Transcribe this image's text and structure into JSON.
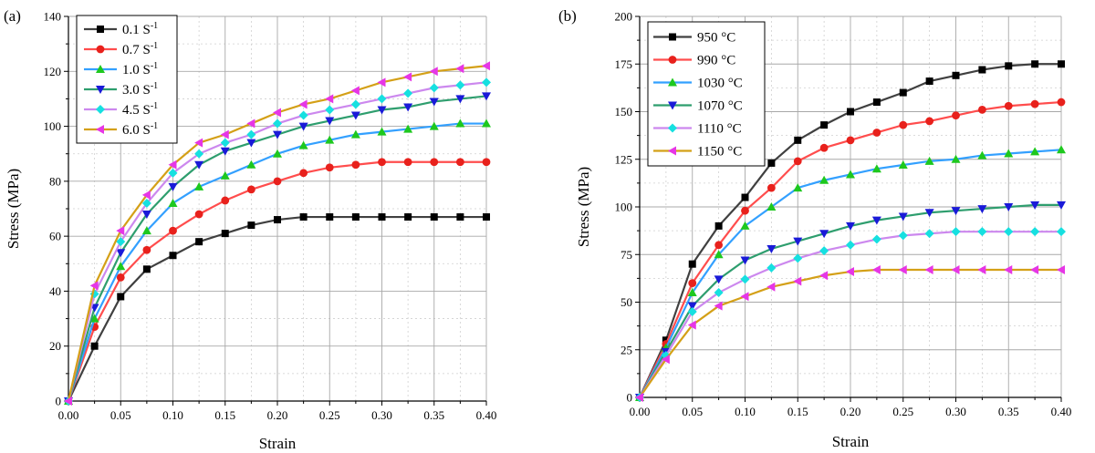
{
  "chart_data": [
    {
      "panel": "(a)",
      "type": "line",
      "xlabel": "Strain",
      "ylabel": "Stress (MPa)",
      "xlim": [
        0,
        0.4
      ],
      "ylim": [
        0,
        140
      ],
      "xticks": [
        0.0,
        0.05,
        0.1,
        0.15,
        0.2,
        0.25,
        0.3,
        0.35,
        0.4
      ],
      "xtick_labels": [
        "0.00",
        "0.05",
        "0.10",
        "0.15",
        "0.20",
        "0.25",
        "0.30",
        "0.35",
        "0.40"
      ],
      "yticks": [
        0,
        20,
        40,
        60,
        80,
        100,
        120,
        140
      ],
      "ytick_labels": [
        "0",
        "20",
        "40",
        "60",
        "80",
        "100",
        "120",
        "140"
      ],
      "x": [
        0,
        0.025,
        0.05,
        0.075,
        0.1,
        0.125,
        0.15,
        0.175,
        0.2,
        0.225,
        0.25,
        0.275,
        0.3,
        0.325,
        0.35,
        0.375,
        0.4
      ],
      "series": [
        {
          "name": "0.1 S",
          "sup": "-1",
          "color": "#000000",
          "marker": "square",
          "values": [
            0,
            20,
            38,
            48,
            53,
            58,
            61,
            64,
            66,
            67,
            67,
            67,
            67,
            67,
            67,
            67,
            67
          ]
        },
        {
          "name": "0.7 S",
          "sup": "-1",
          "color": "#e8211c",
          "marker": "circle",
          "values": [
            0,
            27,
            45,
            55,
            62,
            68,
            73,
            77,
            80,
            83,
            85,
            86,
            87,
            87,
            87,
            87,
            87
          ]
        },
        {
          "name": "1.0 S",
          "sup": "-1",
          "color": "#1ec81e",
          "marker": "triangle-up",
          "values": [
            0,
            30,
            49,
            62,
            72,
            78,
            82,
            86,
            90,
            93,
            95,
            97,
            98,
            99,
            100,
            101,
            101
          ]
        },
        {
          "name": "3.0 S",
          "sup": "-1",
          "color": "#1a1ad8",
          "marker": "triangle-down",
          "values": [
            0,
            34,
            54,
            68,
            78,
            86,
            91,
            94,
            97,
            100,
            102,
            104,
            106,
            107,
            109,
            110,
            111
          ]
        },
        {
          "name": "4.5 S",
          "sup": "-1",
          "color": "#16e0e0",
          "marker": "diamond",
          "values": [
            0,
            39,
            58,
            72,
            83,
            90,
            94,
            97,
            101,
            104,
            106,
            108,
            110,
            112,
            114,
            115,
            116
          ]
        },
        {
          "name": "6.0 S",
          "sup": "-1",
          "color": "#e636e6",
          "marker": "triangle-left",
          "values": [
            0,
            42,
            62,
            75,
            86,
            94,
            97,
            101,
            105,
            108,
            110,
            113,
            116,
            118,
            120,
            121,
            122
          ]
        }
      ],
      "line_colors": [
        "#404040",
        "#ff4d4d",
        "#33a0ff",
        "#2e9e6e",
        "#cc88ee",
        "#d4a017"
      ]
    },
    {
      "panel": "(b)",
      "type": "line",
      "xlabel": "Strain",
      "ylabel": "Stress (MPa)",
      "xlim": [
        0,
        0.4
      ],
      "ylim": [
        0,
        200
      ],
      "xticks": [
        0.0,
        0.05,
        0.1,
        0.15,
        0.2,
        0.25,
        0.3,
        0.35,
        0.4
      ],
      "xtick_labels": [
        "0.00",
        "0.05",
        "0.10",
        "0.15",
        "0.20",
        "0.25",
        "0.30",
        "0.35",
        "0.40"
      ],
      "yticks": [
        0,
        25,
        50,
        75,
        100,
        125,
        150,
        175,
        200
      ],
      "ytick_labels": [
        "0",
        "25",
        "50",
        "75",
        "100",
        "125",
        "150",
        "175",
        "200"
      ],
      "x": [
        0,
        0.025,
        0.05,
        0.075,
        0.1,
        0.125,
        0.15,
        0.175,
        0.2,
        0.225,
        0.25,
        0.275,
        0.3,
        0.325,
        0.35,
        0.375,
        0.4
      ],
      "series": [
        {
          "name": "950 °C",
          "color": "#000000",
          "marker": "square",
          "values": [
            0,
            30,
            70,
            90,
            105,
            123,
            135,
            143,
            150,
            155,
            160,
            166,
            169,
            172,
            174,
            175,
            175
          ]
        },
        {
          "name": "990 °C",
          "color": "#e8211c",
          "marker": "circle",
          "values": [
            0,
            28,
            60,
            80,
            98,
            110,
            124,
            131,
            135,
            139,
            143,
            145,
            148,
            151,
            153,
            154,
            155
          ]
        },
        {
          "name": "1030 °C",
          "color": "#1ec81e",
          "marker": "triangle-up",
          "values": [
            0,
            26,
            55,
            75,
            90,
            100,
            110,
            114,
            117,
            120,
            122,
            124,
            125,
            127,
            128,
            129,
            130
          ]
        },
        {
          "name": "1070 °C",
          "color": "#1a1ad8",
          "marker": "triangle-down",
          "values": [
            0,
            24,
            48,
            62,
            72,
            78,
            82,
            86,
            90,
            93,
            95,
            97,
            98,
            99,
            100,
            101,
            101
          ]
        },
        {
          "name": "1110 °C",
          "color": "#16e0e0",
          "marker": "diamond",
          "values": [
            0,
            22,
            45,
            55,
            62,
            68,
            73,
            77,
            80,
            83,
            85,
            86,
            87,
            87,
            87,
            87,
            87
          ]
        },
        {
          "name": "1150 °C",
          "color": "#e636e6",
          "marker": "triangle-left",
          "values": [
            0,
            20,
            38,
            48,
            53,
            58,
            61,
            64,
            66,
            67,
            67,
            67,
            67,
            67,
            67,
            67,
            67
          ]
        }
      ],
      "line_colors": [
        "#404040",
        "#ff4d4d",
        "#33a0ff",
        "#2e9e6e",
        "#cc88ee",
        "#d4a017"
      ]
    }
  ]
}
